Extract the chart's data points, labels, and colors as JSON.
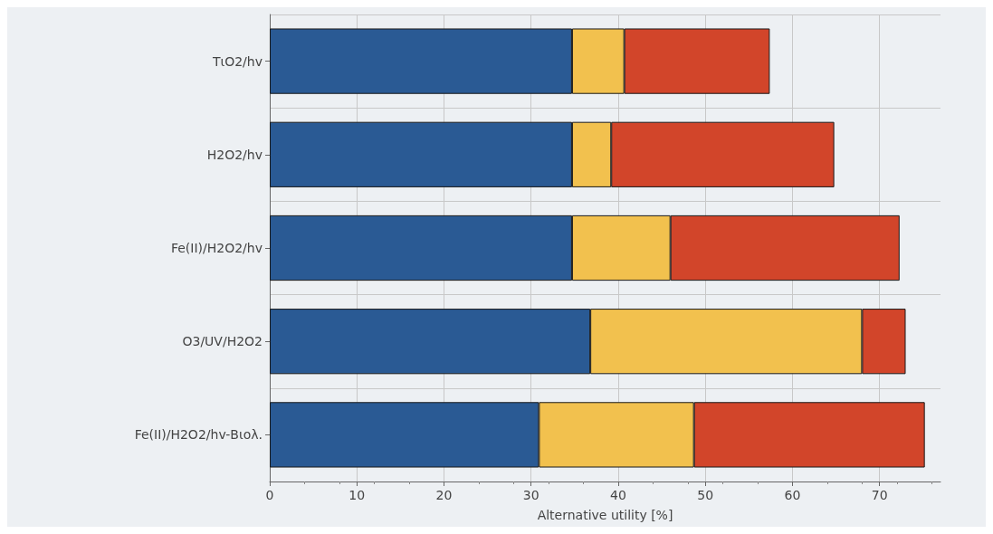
{
  "chart_data": {
    "type": "bar",
    "orientation": "horizontal",
    "stacked": true,
    "xlabel": "Alternative utility [%]",
    "categories": [
      "TιO2/hv",
      "H2O2/hv",
      "Fe(II)/H2O2/hv",
      "O3/UV/H2O2",
      "Fe(II)/H2O2/hv-Βιολ."
    ],
    "series": [
      {
        "color": "#2a5a94",
        "values": [
          34.7,
          34.7,
          34.7,
          36.8,
          30.9
        ]
      },
      {
        "color": "#f2c14e",
        "values": [
          6.0,
          4.5,
          11.3,
          31.2,
          17.8
        ]
      },
      {
        "color": "#d2452a",
        "values": [
          16.7,
          25.6,
          26.3,
          5.0,
          26.5
        ]
      }
    ],
    "xlim": [
      0,
      77
    ],
    "xticks": [
      0,
      10,
      20,
      30,
      40,
      50,
      60,
      70
    ],
    "grid": true
  }
}
